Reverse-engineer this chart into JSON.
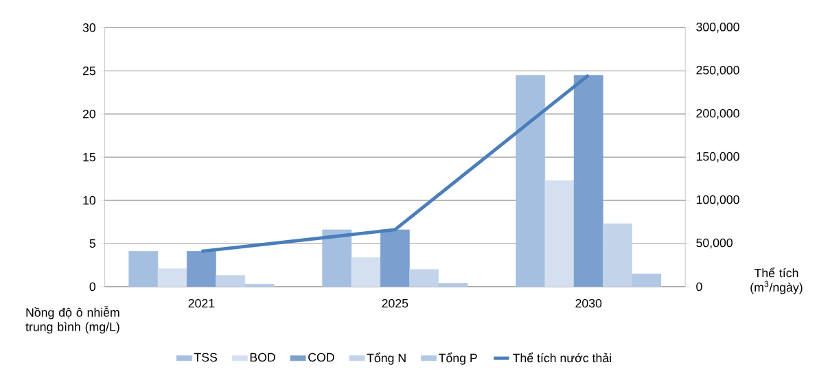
{
  "chart_data": {
    "type": "bar",
    "categories": [
      "2021",
      "2025",
      "2030"
    ],
    "series": [
      {
        "name": "TSS",
        "color": "#a4bfe0",
        "values": [
          4.1,
          6.6,
          24.5
        ]
      },
      {
        "name": "BOD",
        "color": "#d4e0f0",
        "values": [
          2.1,
          3.4,
          12.3
        ]
      },
      {
        "name": "COD",
        "color": "#7b9fcf",
        "values": [
          4.1,
          6.6,
          24.5
        ]
      },
      {
        "name": "Tổng N",
        "color": "#c3d4ea",
        "values": [
          1.3,
          2.0,
          7.3
        ]
      },
      {
        "name": "Tổng P",
        "color": "#b3c8e5",
        "values": [
          0.3,
          0.4,
          1.5
        ]
      },
      {
        "name": "Thể tích nước thải",
        "type": "line",
        "axis": "y2",
        "color": "#4a7ebb",
        "values": [
          41000,
          66000,
          245000
        ]
      }
    ],
    "ylabel": "Nồng độ ô nhiễm trung bình (mg/L)",
    "y2label": "Thể tích (m$^{3}$/ngày)",
    "ylim": [
      0,
      30
    ],
    "yticks": [
      0,
      5,
      10,
      15,
      20,
      25,
      30
    ],
    "y2lim": [
      0,
      300000
    ],
    "y2ticks": [
      0,
      {
        "value": 50000,
        "label": "50,000"
      },
      {
        "value": 100000,
        "label": "100,000"
      },
      {
        "value": 150000,
        "label": "150,000"
      },
      {
        "value": 200000,
        "label": "200,000"
      },
      {
        "value": 250000,
        "label": "250,000"
      },
      {
        "value": 300000,
        "label": "300,000"
      }
    ],
    "grid": "y",
    "legend": "bottom"
  }
}
